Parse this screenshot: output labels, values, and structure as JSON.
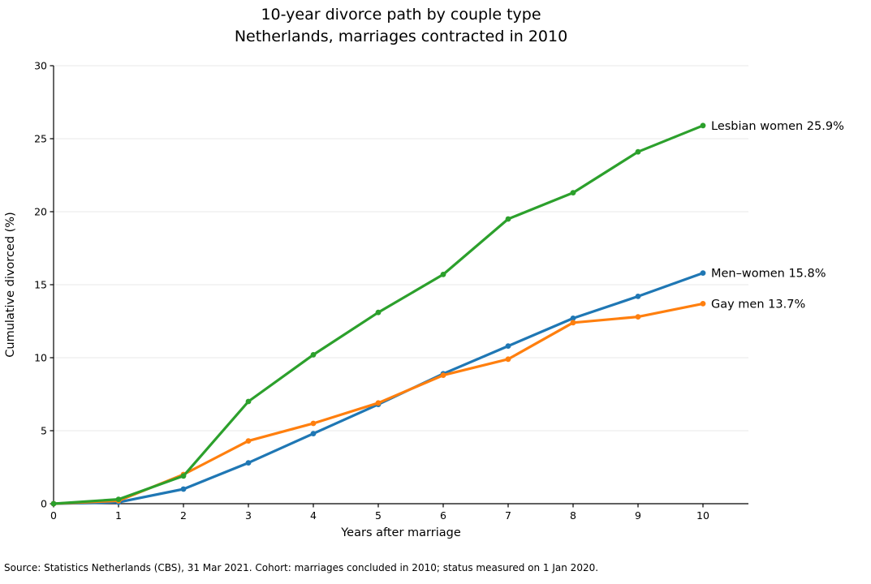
{
  "title": {
    "line1": "10-year divorce path by couple type",
    "line2": "Netherlands, marriages contracted in 2010"
  },
  "source_note": "Source: Statistics Netherlands (CBS), 31 Mar 2021. Cohort: marriages concluded in 2010; status measured on 1 Jan 2020.",
  "chart_data": {
    "type": "line",
    "title": "10-year divorce path by couple type\nNetherlands, marriages contracted in 2010",
    "xlabel": "Years after marriage",
    "ylabel": "Cumulative divorced (%)",
    "x": [
      0,
      1,
      2,
      3,
      4,
      5,
      6,
      7,
      8,
      9,
      10
    ],
    "xticks": [
      0,
      1,
      2,
      3,
      4,
      5,
      6,
      7,
      8,
      9,
      10
    ],
    "yticks": [
      0,
      5,
      10,
      15,
      20,
      25,
      30
    ],
    "xlim": [
      0,
      10.7
    ],
    "ylim": [
      0,
      30
    ],
    "grid": "horizontal-light",
    "legend_position": "end-of-line-labels",
    "series": [
      {
        "name": "Men–women",
        "color": "#1f77b4",
        "values": [
          0,
          0.1,
          1.0,
          2.8,
          4.8,
          6.8,
          8.9,
          10.8,
          12.7,
          14.2,
          15.8
        ],
        "end_label": "Men–women 15.8%"
      },
      {
        "name": "Gay men",
        "color": "#ff7f0e",
        "values": [
          0,
          0.2,
          2.0,
          4.3,
          5.5,
          6.9,
          8.8,
          9.9,
          12.4,
          12.8,
          13.7
        ],
        "end_label": "Gay men 13.7%"
      },
      {
        "name": "Lesbian women",
        "color": "#2ca02c",
        "values": [
          0,
          0.3,
          1.9,
          7.0,
          10.2,
          13.1,
          15.7,
          19.5,
          21.3,
          24.1,
          25.9
        ],
        "end_label": "Lesbian women 25.9%"
      }
    ]
  }
}
